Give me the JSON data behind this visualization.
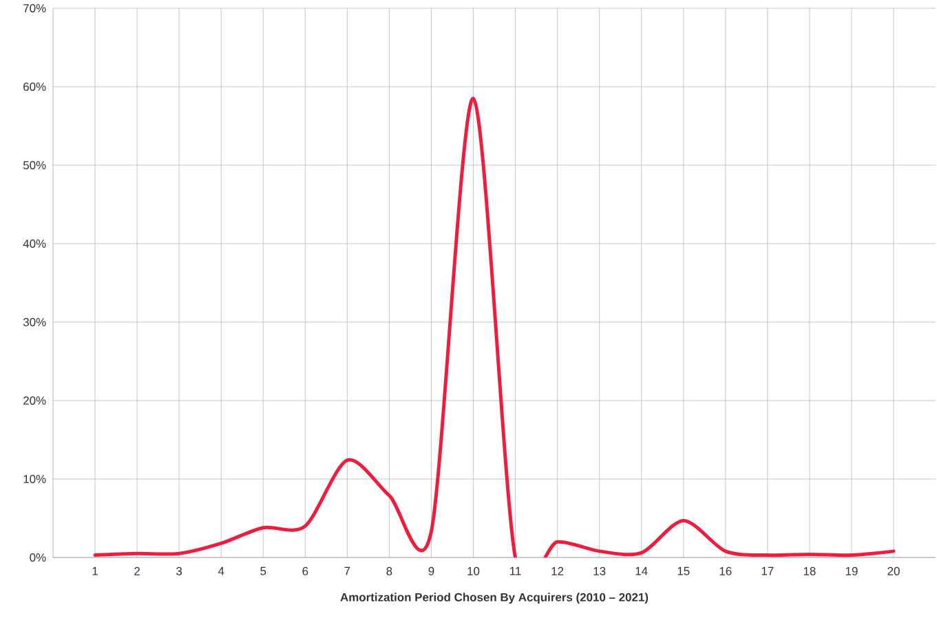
{
  "chart_data": {
    "type": "line",
    "xlabel": "Amortization Period Chosen By Acquirers (2010 – 2021)",
    "categories": [
      "1",
      "2",
      "3",
      "4",
      "5",
      "6",
      "7",
      "8",
      "9",
      "10",
      "11",
      "12",
      "13",
      "14",
      "15",
      "16",
      "17",
      "18",
      "19",
      "20"
    ],
    "values": [
      0.3,
      0.5,
      0.5,
      1.8,
      3.8,
      4.0,
      12.4,
      7.9,
      3.3,
      58.5,
      0,
      2.0,
      0.8,
      0.6,
      4.7,
      0.8,
      0.3,
      0.4,
      0.3,
      0.8
    ],
    "color": "#ee1c3d",
    "ylim": [
      0,
      70
    ],
    "yticks": [
      {
        "value": 0,
        "label": "0%"
      },
      {
        "value": 10,
        "label": "10%"
      },
      {
        "value": 20,
        "label": "20%"
      },
      {
        "value": 30,
        "label": "30%"
      },
      {
        "value": 40,
        "label": "40%"
      },
      {
        "value": 50,
        "label": "50%"
      },
      {
        "value": 60,
        "label": "60%"
      },
      {
        "value": 70,
        "label": "70%"
      }
    ],
    "grid": true,
    "marker": "none",
    "line_style": "solid"
  }
}
